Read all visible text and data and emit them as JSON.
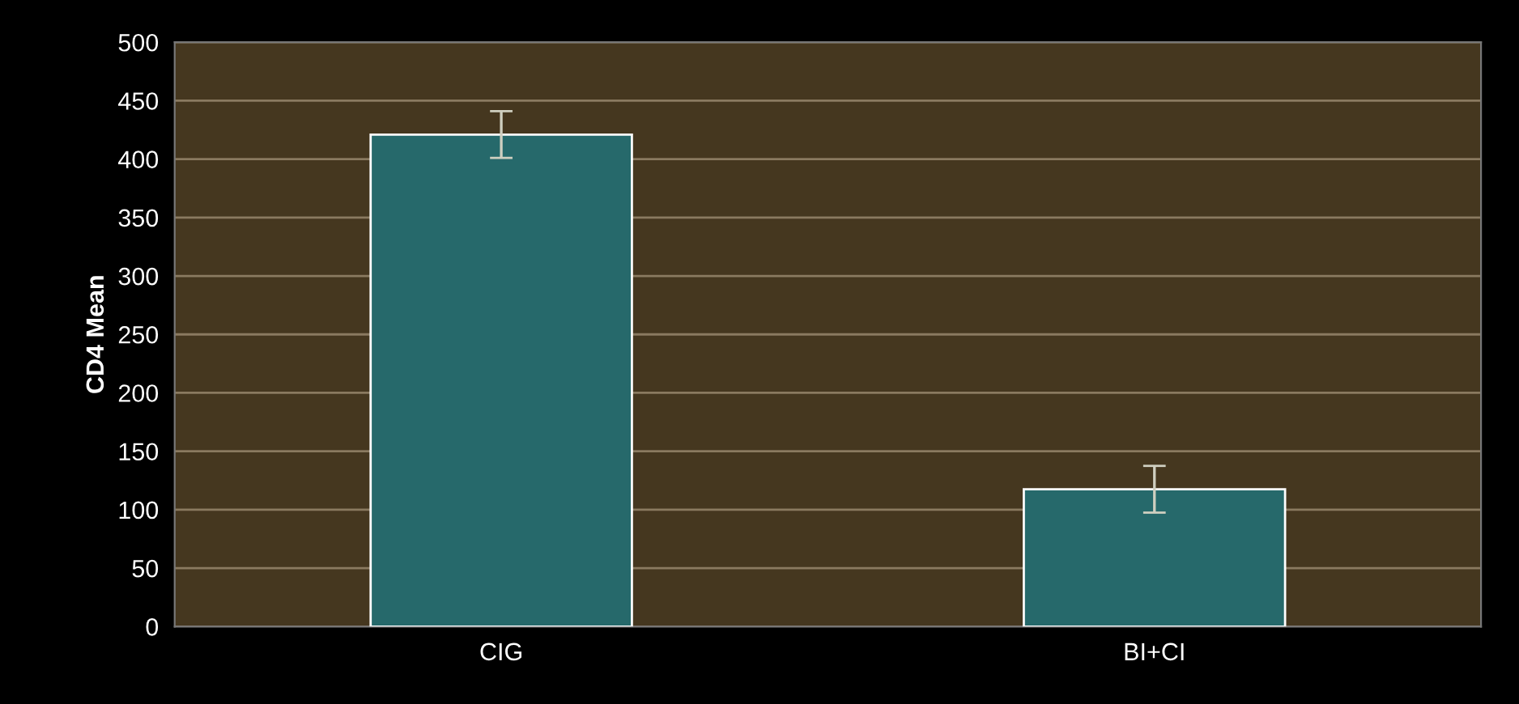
{
  "chart_data": {
    "type": "bar",
    "ylabel": "CD4 Mean",
    "categories": [
      "CIG",
      "BI+CI"
    ],
    "values": [
      421,
      117.5
    ],
    "errors": [
      20,
      20
    ],
    "color": "#26696b",
    "ylim": [
      0,
      500
    ],
    "yticks": [
      0,
      50,
      100,
      150,
      200,
      250,
      300,
      350,
      400,
      450,
      500
    ],
    "grid": "y",
    "legend": false
  }
}
